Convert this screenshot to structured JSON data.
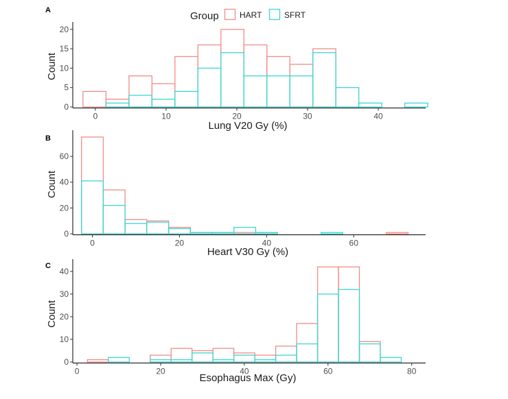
{
  "legend": {
    "title": "Group",
    "items": [
      {
        "label": "HART",
        "color": "#F08C86"
      },
      {
        "label": "SFRT",
        "color": "#3CD6D2"
      }
    ]
  },
  "chart_data": [
    {
      "type": "bar",
      "panel_label": "A",
      "xlabel": "Lung V20 Gy (%)",
      "ylabel": "Count",
      "xlim": [
        -3.2,
        46.5
      ],
      "ylim": [
        0,
        20.5
      ],
      "xticks": [
        0,
        10,
        20,
        30,
        40
      ],
      "yticks": [
        0,
        5,
        10,
        15,
        20
      ],
      "bin_edges": [
        -1.75,
        1.5,
        4.75,
        8,
        11.25,
        14.5,
        17.75,
        21,
        24.25,
        27.5,
        30.75,
        34,
        37.25,
        40.5,
        43.75,
        47
      ],
      "series": [
        {
          "name": "HART",
          "values": [
            4,
            2,
            8,
            6,
            13,
            16,
            20,
            16,
            13,
            11,
            15,
            0,
            0,
            0,
            0
          ]
        },
        {
          "name": "SFRT",
          "values": [
            0,
            1,
            3,
            2,
            4,
            10,
            14,
            8,
            8,
            8,
            14,
            5,
            1,
            0,
            1
          ]
        }
      ]
    },
    {
      "type": "bar",
      "panel_label": "B",
      "xlabel": "Heart V30 Gy (%)",
      "ylabel": "Count",
      "xlim": [
        -4.5,
        76.2
      ],
      "ylim": [
        0,
        76
      ],
      "xticks": [
        0,
        20,
        40,
        60
      ],
      "yticks": [
        0,
        20,
        40,
        60
      ],
      "bin_edges": [
        -2.5,
        2.5,
        7.5,
        12.5,
        17.5,
        22.5,
        27.5,
        32.5,
        37.5,
        42.5,
        47.5,
        52.5,
        57.5,
        62.5,
        67.5,
        72.5,
        77.5
      ],
      "series": [
        {
          "name": "HART",
          "values": [
            75,
            34,
            11,
            10,
            5,
            1,
            1,
            1,
            1,
            0,
            0,
            0,
            0,
            0,
            1,
            0
          ]
        },
        {
          "name": "SFRT",
          "values": [
            41,
            22,
            8,
            9,
            4,
            1,
            1,
            5,
            1,
            0,
            0,
            1,
            0,
            0,
            0,
            0
          ]
        }
      ]
    },
    {
      "type": "bar",
      "panel_label": "C",
      "xlabel": "Esophagus Max (Gy)",
      "ylabel": "Count",
      "xlim": [
        -1,
        83
      ],
      "ylim": [
        0,
        43
      ],
      "xticks": [
        0,
        20,
        40,
        60,
        80
      ],
      "yticks": [
        0,
        10,
        20,
        30,
        40
      ],
      "bin_edges": [
        2.5,
        7.5,
        12.5,
        17.5,
        22.5,
        27.5,
        32.5,
        37.5,
        42.5,
        47.5,
        52.5,
        57.5,
        62.5,
        67.5,
        72.5,
        77.5,
        82.5
      ],
      "series": [
        {
          "name": "HART",
          "values": [
            1,
            0,
            0,
            3,
            6,
            5,
            6,
            4,
            3,
            7,
            17,
            42,
            42,
            9,
            0,
            0
          ]
        },
        {
          "name": "SFRT",
          "values": [
            0,
            2,
            0,
            1,
            1,
            4,
            1,
            3,
            1,
            3,
            8,
            30,
            32,
            8,
            2,
            0
          ]
        }
      ]
    }
  ]
}
